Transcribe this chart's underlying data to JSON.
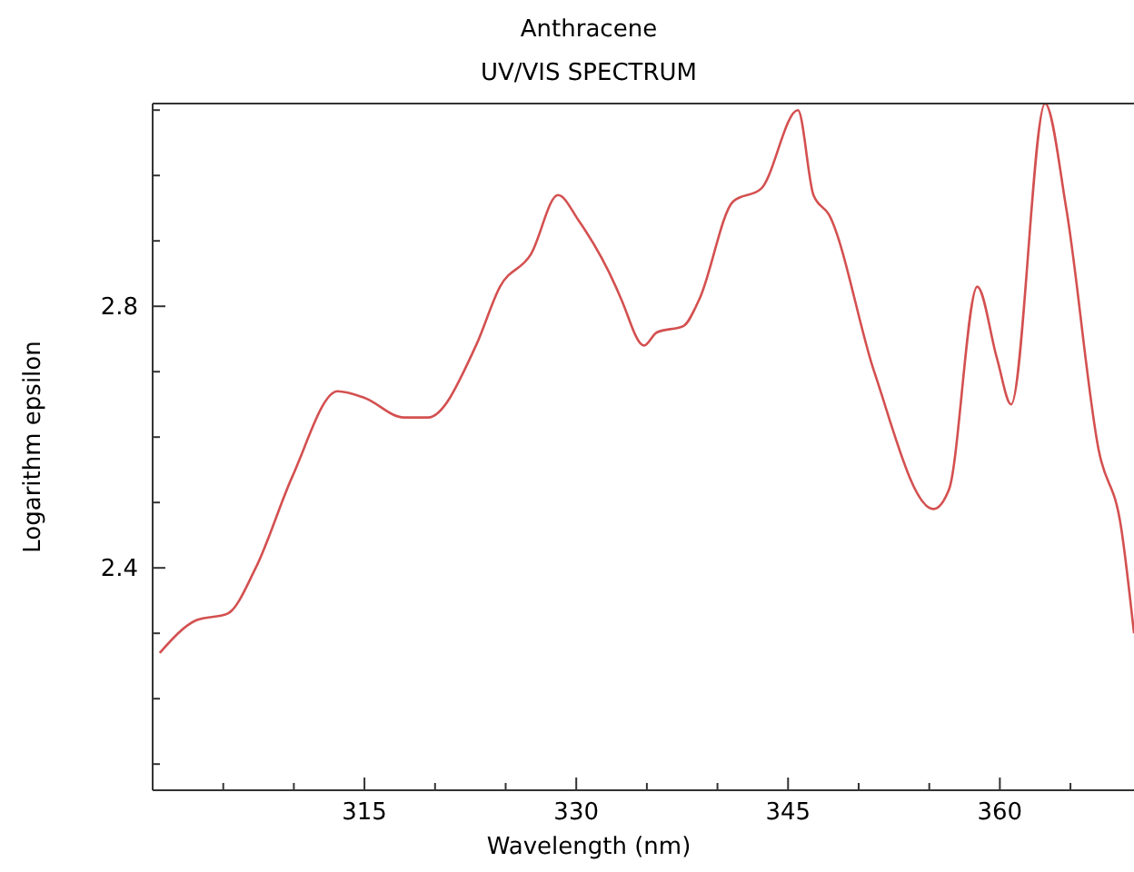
{
  "chart_data": {
    "type": "line",
    "title": "Anthracene",
    "subtitle": "UV/VIS SPECTRUM",
    "xlabel": "Wavelength (nm)",
    "ylabel": "Logarithm epsilon",
    "x": [
      300.5,
      303.1,
      305.3,
      307.3,
      309.9,
      313.1,
      315.0,
      317.8,
      319.5,
      322.9,
      324.6,
      326.8,
      328.7,
      330.2,
      332.8,
      333.2,
      334.8,
      335.7,
      337.6,
      338.7,
      341.1,
      343.1,
      345.7,
      346.8,
      347.9,
      351.1,
      355.3,
      356.4,
      358.4,
      359.8,
      360.8,
      363.2,
      364.7,
      367.0,
      368.6,
      369.5
    ],
    "series": [
      {
        "color": "#d45050",
        "values": [
          2.27,
          2.32,
          2.33,
          2.4,
          2.54,
          2.67,
          2.66,
          2.63,
          2.63,
          2.74,
          2.83,
          2.88,
          2.97,
          2.93,
          2.83,
          2.81,
          2.74,
          2.76,
          2.77,
          2.81,
          2.96,
          2.98,
          3.1,
          2.97,
          2.94,
          2.7,
          2.49,
          2.52,
          2.83,
          2.72,
          2.65,
          3.11,
          2.95,
          2.58,
          2.46,
          2.3
        ]
      }
    ],
    "xlim": [
      300,
      369.5
    ],
    "ylim": [
      2.06,
      3.11
    ],
    "xticks": [
      {
        "value": 300,
        "label": null
      },
      {
        "value": 305,
        "label": null
      },
      {
        "value": 310,
        "label": null
      },
      315,
      {
        "value": 320,
        "label": null
      },
      {
        "value": 325,
        "label": null
      },
      330,
      {
        "value": 335,
        "label": null
      },
      {
        "value": 340,
        "label": null
      },
      345,
      {
        "value": 350,
        "label": null
      },
      {
        "value": 355,
        "label": null
      },
      360,
      {
        "value": 365,
        "label": null
      }
    ],
    "yticks": [
      {
        "value": 2.1,
        "label": null
      },
      {
        "value": 2.2,
        "label": null
      },
      {
        "value": 2.3,
        "label": null
      },
      {
        "value": 2.4,
        "label": "2.4"
      },
      {
        "value": 2.5,
        "label": null
      },
      {
        "value": 2.6,
        "label": null
      },
      {
        "value": 2.7,
        "label": null
      },
      {
        "value": 2.8,
        "label": "2.8"
      },
      {
        "value": 2.9,
        "label": null
      },
      {
        "value": 3.0,
        "label": null
      },
      {
        "value": 3.1,
        "label": null
      }
    ],
    "grid": false,
    "marker": "none",
    "line_style": "solid"
  }
}
